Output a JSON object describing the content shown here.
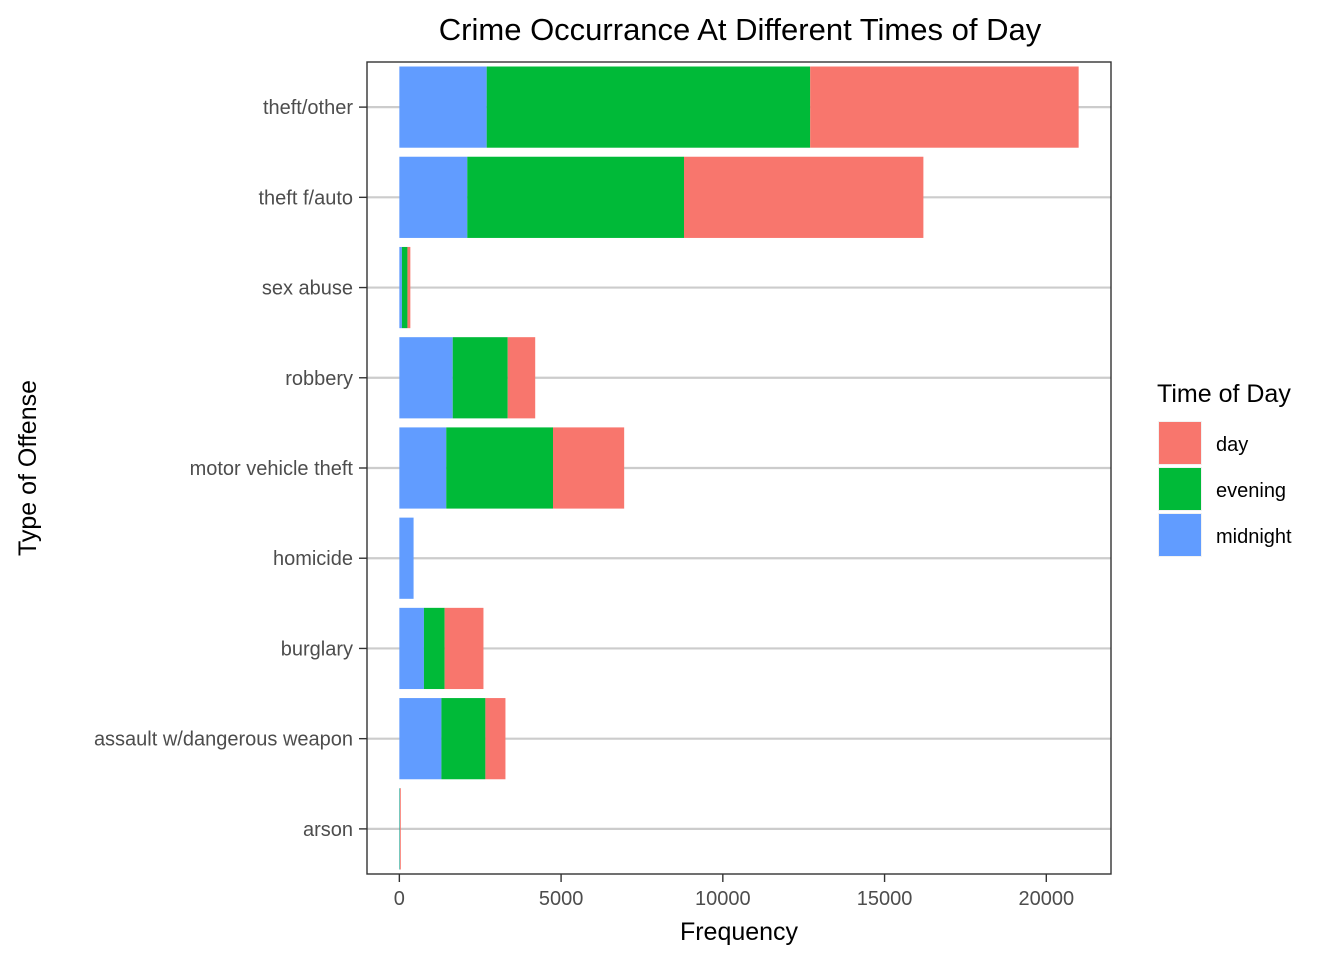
{
  "chart_data": {
    "type": "bar",
    "orientation": "horizontal",
    "stacked": true,
    "title": "Crime Occurrance At Different Times of Day",
    "xlabel": "Frequency",
    "ylabel": "Type of Offense",
    "xlim": [
      -1000,
      22000
    ],
    "x_ticks": [
      0,
      5000,
      10000,
      15000,
      20000
    ],
    "x_tick_labels": [
      "0",
      "5000",
      "10000",
      "15000",
      "20000"
    ],
    "grid": "horizontal major",
    "categories": [
      "theft/other",
      "theft f/auto",
      "sex abuse",
      "robbery",
      "motor vehicle theft",
      "homicide",
      "burglary",
      "assault w/dangerous weapon",
      "arson"
    ],
    "stack_order": [
      "midnight",
      "evening",
      "day"
    ],
    "series": [
      {
        "name": "day",
        "color": "#F8766D",
        "values": [
          8300,
          7400,
          90,
          850,
          2200,
          0,
          1200,
          620,
          15
        ]
      },
      {
        "name": "evening",
        "color": "#00BA38",
        "values": [
          10000,
          6700,
          170,
          1700,
          3300,
          0,
          640,
          1360,
          10
        ]
      },
      {
        "name": "midnight",
        "color": "#619CFF",
        "values": [
          2700,
          2100,
          80,
          1650,
          1450,
          440,
          760,
          1300,
          10
        ]
      }
    ],
    "legend": {
      "title": "Time of Day",
      "position": "right",
      "items": [
        "day",
        "evening",
        "midnight"
      ]
    }
  }
}
